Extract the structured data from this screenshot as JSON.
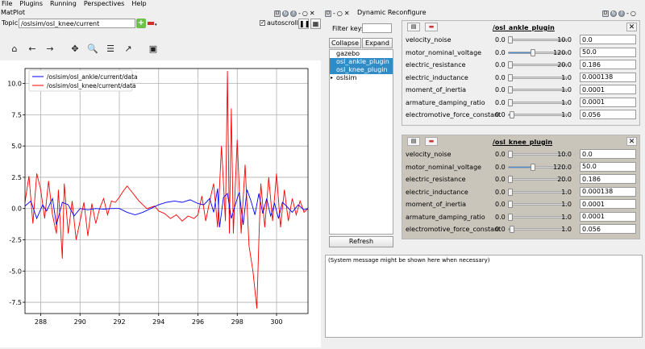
{
  "menu": [
    "File",
    "Plugins",
    "Running",
    "Perspectives",
    "Help"
  ],
  "matplot": {
    "title": "MatPlot",
    "topic_label": "Topic",
    "topic_value": "/oslsim/osl_knee/current",
    "autoscroll_label": "autoscroll",
    "autoscroll_checked": true
  },
  "reconfigure": {
    "title": "Dynamic Reconfigure",
    "filter_label": "Filter key:",
    "filter_value": "",
    "collapse_label": "Collapse all",
    "expand_label": "Expand all",
    "tree": [
      {
        "label": "gazebo",
        "selected": false,
        "expander": false
      },
      {
        "label": "osl_ankle_plugin",
        "selected": true,
        "expander": false
      },
      {
        "label": "osl_knee_plugin",
        "selected": true,
        "expander": false
      },
      {
        "label": "oslsim",
        "selected": false,
        "expander": true
      }
    ],
    "refresh_label": "Refresh",
    "system_message": "(System message might be shown here when necessary)"
  },
  "panels": [
    {
      "name": "/osl_ankle_plugin",
      "params": [
        {
          "label": "velocity_noise",
          "min": "0.0",
          "max": "10.0",
          "value": "0.0",
          "fraction": 0.0
        },
        {
          "label": "motor_nominal_voltage",
          "min": "0.0",
          "max": "120.0",
          "value": "50.0",
          "fraction": 0.42
        },
        {
          "label": "electric_resistance",
          "min": "0.0",
          "max": "20.0",
          "value": "0.186",
          "fraction": 0.01
        },
        {
          "label": "electric_inductance",
          "min": "0.0",
          "max": "1.0",
          "value": "0.000138",
          "fraction": 0.0
        },
        {
          "label": "moment_of_inertia",
          "min": "0.0",
          "max": "1.0",
          "value": "0.0001",
          "fraction": 0.0
        },
        {
          "label": "armature_damping_ratio",
          "min": "0.0",
          "max": "1.0",
          "value": "0.0001",
          "fraction": 0.0
        },
        {
          "label": "electromotive_force_constant",
          "min": "0.0",
          "max": "1.0",
          "value": "0.056",
          "fraction": 0.06
        }
      ]
    },
    {
      "name": "/osl_knee_plugin",
      "params": [
        {
          "label": "velocity_noise",
          "min": "0.0",
          "max": "10.0",
          "value": "0.0",
          "fraction": 0.0
        },
        {
          "label": "motor_nominal_voltage",
          "min": "0.0",
          "max": "120.0",
          "value": "50.0",
          "fraction": 0.42
        },
        {
          "label": "electric_resistance",
          "min": "0.0",
          "max": "20.0",
          "value": "0.186",
          "fraction": 0.01
        },
        {
          "label": "electric_inductance",
          "min": "0.0",
          "max": "1.0",
          "value": "0.000138",
          "fraction": 0.0
        },
        {
          "label": "moment_of_inertia",
          "min": "0.0",
          "max": "1.0",
          "value": "0.0001",
          "fraction": 0.0
        },
        {
          "label": "armature_damping_ratio",
          "min": "0.0",
          "max": "1.0",
          "value": "0.0001",
          "fraction": 0.0
        },
        {
          "label": "electromotive_force_constant",
          "min": "0.0",
          "max": "1.0",
          "value": "0.056",
          "fraction": 0.06
        }
      ]
    }
  ],
  "colors": {
    "ankle": "#0000ff",
    "knee": "#ff0000",
    "selection": "#308cc6"
  },
  "chart_data": {
    "type": "line",
    "xlim": [
      287.2,
      301.6
    ],
    "ylim": [
      -8.4,
      11.2
    ],
    "xticks": [
      288,
      290,
      292,
      294,
      296,
      298,
      300
    ],
    "yticks": [
      -7.5,
      -5.0,
      -2.5,
      0.0,
      2.5,
      5.0,
      7.5,
      10.0
    ],
    "grid": true,
    "legend_position": "top-left",
    "series": [
      {
        "name": "/oslsim/osl_ankle/current/data",
        "color": "#0000ff",
        "x": [
          287.2,
          287.5,
          287.8,
          288.1,
          288.3,
          288.6,
          288.8,
          289.1,
          289.4,
          289.7,
          290.0,
          290.4,
          290.8,
          291.2,
          291.6,
          292.0,
          292.4,
          292.8,
          293.2,
          293.6,
          294.0,
          294.4,
          294.8,
          295.2,
          295.6,
          296.0,
          296.3,
          296.6,
          296.8,
          297.0,
          297.1,
          297.3,
          297.5,
          297.7,
          297.9,
          298.1,
          298.3,
          298.5,
          298.7,
          298.9,
          299.1,
          299.3,
          299.5,
          299.7,
          299.9,
          300.1,
          300.3,
          300.5,
          300.8,
          301.1,
          301.4,
          301.6
        ],
        "y": [
          0.2,
          0.6,
          -0.8,
          0.3,
          -0.2,
          0.8,
          -1.3,
          0.5,
          0.3,
          -0.6,
          0.0,
          -0.1,
          0.0,
          -0.05,
          0.0,
          0.0,
          -0.3,
          -0.5,
          -0.3,
          0.0,
          0.3,
          0.5,
          0.6,
          0.5,
          0.7,
          0.4,
          0.3,
          0.8,
          -0.3,
          1.6,
          -1.5,
          0.9,
          1.2,
          -0.8,
          0.3,
          1.3,
          -1.3,
          1.5,
          0.6,
          -0.5,
          1.2,
          -0.4,
          0.8,
          -0.6,
          0.4,
          -0.8,
          0.5,
          0.2,
          -0.3,
          0.3,
          -0.1,
          0.0
        ]
      },
      {
        "name": "/oslsim/osl_knee/current/data",
        "color": "#ff0000",
        "x": [
          287.2,
          287.4,
          287.6,
          287.8,
          288.0,
          288.2,
          288.4,
          288.6,
          288.8,
          288.9,
          289.1,
          289.2,
          289.4,
          289.6,
          289.8,
          290.0,
          290.2,
          290.4,
          290.6,
          290.8,
          291.0,
          291.2,
          291.4,
          291.6,
          291.8,
          292.0,
          292.2,
          292.4,
          292.6,
          292.8,
          293.0,
          293.2,
          293.4,
          293.6,
          293.8,
          294.0,
          294.3,
          294.6,
          294.9,
          295.2,
          295.5,
          295.8,
          296.0,
          296.2,
          296.4,
          296.6,
          296.8,
          297.0,
          297.2,
          297.4,
          297.5,
          297.6,
          297.7,
          297.8,
          298.0,
          298.2,
          298.4,
          298.6,
          298.8,
          299.0,
          299.1,
          299.2,
          299.4,
          299.6,
          299.8,
          300.0,
          300.2,
          300.4,
          300.6,
          300.8,
          301.0,
          301.2,
          301.4,
          301.6
        ],
        "y": [
          0.5,
          2.6,
          -1.2,
          2.8,
          1.5,
          -0.8,
          2.2,
          -0.5,
          -2.0,
          1.5,
          -4.0,
          2.0,
          -2.0,
          0.6,
          -2.5,
          -1.0,
          0.5,
          -2.2,
          0.4,
          -1.2,
          0.0,
          0.8,
          -0.5,
          0.6,
          0.5,
          0.9,
          1.4,
          1.8,
          1.4,
          1.0,
          0.6,
          0.3,
          0.0,
          0.1,
          0.2,
          -0.2,
          -0.4,
          -0.8,
          -0.5,
          -1.0,
          -0.6,
          -0.8,
          -0.5,
          1.0,
          -1.0,
          0.6,
          2.0,
          -1.5,
          5.0,
          -1.0,
          11.0,
          -2.0,
          8.0,
          -2.0,
          5.5,
          -2.0,
          3.5,
          -3.0,
          -5.0,
          -8.0,
          -2.5,
          2.0,
          -1.5,
          2.5,
          -1.0,
          2.8,
          -1.5,
          1.5,
          -1.0,
          0.8,
          -0.5,
          0.6,
          -0.3,
          0.0
        ]
      }
    ]
  }
}
